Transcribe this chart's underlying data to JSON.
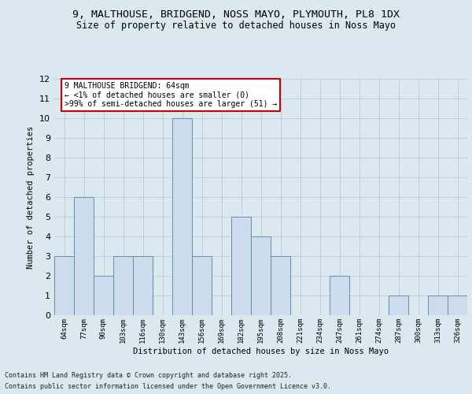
{
  "title_line1": "9, MALTHOUSE, BRIDGEND, NOSS MAYO, PLYMOUTH, PL8 1DX",
  "title_line2": "Size of property relative to detached houses in Noss Mayo",
  "xlabel": "Distribution of detached houses by size in Noss Mayo",
  "ylabel": "Number of detached properties",
  "categories": [
    "64sqm",
    "77sqm",
    "90sqm",
    "103sqm",
    "116sqm",
    "130sqm",
    "143sqm",
    "156sqm",
    "169sqm",
    "182sqm",
    "195sqm",
    "208sqm",
    "221sqm",
    "234sqm",
    "247sqm",
    "261sqm",
    "274sqm",
    "287sqm",
    "300sqm",
    "313sqm",
    "326sqm"
  ],
  "values": [
    3,
    6,
    2,
    3,
    3,
    0,
    10,
    3,
    0,
    5,
    4,
    3,
    0,
    0,
    2,
    0,
    0,
    1,
    0,
    1,
    1
  ],
  "bar_color": "#ccdcec",
  "bar_edge_color": "#6090b0",
  "annotation_text": "9 MALTHOUSE BRIDGEND: 64sqm\n← <1% of detached houses are smaller (0)\n>99% of semi-detached houses are larger (51) →",
  "annotation_box_color": "#ffffff",
  "annotation_box_edge_color": "#cc0000",
  "ylim": [
    0,
    12
  ],
  "yticks": [
    0,
    1,
    2,
    3,
    4,
    5,
    6,
    7,
    8,
    9,
    10,
    11,
    12
  ],
  "footer_line1": "Contains HM Land Registry data © Crown copyright and database right 2025.",
  "footer_line2": "Contains public sector information licensed under the Open Government Licence v3.0.",
  "background_color": "#dce8f0",
  "grid_color": "#b0c4d4"
}
